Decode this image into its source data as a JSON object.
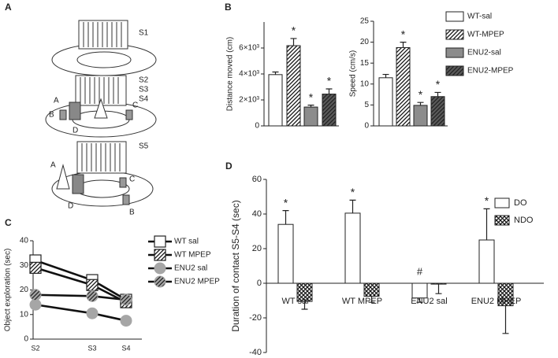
{
  "diagram": {
    "panel": "A",
    "labels": [
      "S1",
      "S2",
      "S3",
      "S4",
      "A",
      "B",
      "C",
      "D",
      "S5",
      "A",
      "C",
      "D",
      "B"
    ]
  },
  "chart_data": [
    {
      "type": "bar",
      "panel": "B",
      "ylabel": "Distance moved (cm)",
      "ylim": [
        0,
        8000
      ],
      "yticks": [
        0,
        {
          "value": 2000,
          "label": "2×10³"
        },
        {
          "value": 4000,
          "label": "4×10³"
        },
        {
          "value": 6000,
          "label": "6×10³"
        }
      ],
      "series": [
        {
          "name": "WT-sal",
          "color": "#ffffff",
          "hatch": "none",
          "values": [
            3950
          ],
          "errors": [
            200
          ]
        },
        {
          "name": "WT-MPEP",
          "color": "#ffffff",
          "hatch": "diagonal",
          "values": [
            6180
          ],
          "errors": [
            550
          ],
          "annotation": "*"
        },
        {
          "name": "ENU2-sal",
          "color": "#8c8c8c",
          "hatch": "none",
          "values": [
            1450
          ],
          "errors": [
            150
          ],
          "annotation": "*"
        },
        {
          "name": "ENU2-MPEP",
          "color": "#5a5a5a",
          "hatch": "diagonal",
          "values": [
            2450
          ],
          "errors": [
            400
          ],
          "annotation": "*"
        }
      ]
    },
    {
      "type": "bar",
      "ylabel": "Speed (cm/s)",
      "ylim": [
        0,
        25
      ],
      "yticks": [
        0,
        5,
        10,
        15,
        20,
        25
      ],
      "series": [
        {
          "color": "#ffffff",
          "hatch": "none",
          "values": [
            11.5
          ],
          "errors": [
            0.8
          ]
        },
        {
          "color": "#ffffff",
          "hatch": "diagonal",
          "values": [
            18.7
          ],
          "errors": [
            1.3
          ],
          "annotation": "*"
        },
        {
          "color": "#8c8c8c",
          "hatch": "none",
          "values": [
            4.9
          ],
          "errors": [
            0.7
          ],
          "annotation": "*"
        },
        {
          "color": "#5a5a5a",
          "hatch": "diagonal",
          "values": [
            7
          ],
          "errors": [
            1
          ],
          "annotation": "*"
        }
      ]
    },
    {
      "type": "line",
      "panel": "C",
      "ylabel": "Object exploration (sec)",
      "ylim": [
        0,
        40
      ],
      "yticks": [
        0,
        10,
        20,
        30,
        40
      ],
      "categories": [
        "S2",
        "S3",
        "S4"
      ],
      "series": [
        {
          "name": "WT sal",
          "marker": "square",
          "color": "#ffffff",
          "hatch": "none",
          "values": [
            32,
            24,
            16
          ]
        },
        {
          "name": "WT MPEP",
          "marker": "square",
          "color": "#ffffff",
          "hatch": "diagonal",
          "values": [
            29,
            22,
            15
          ]
        },
        {
          "name": "ENU2 sal",
          "marker": "circle",
          "color": "#a6a6a6",
          "hatch": "none",
          "values": [
            14,
            10.5,
            7.5
          ]
        },
        {
          "name": "ENU2 MPEP",
          "marker": "circle",
          "color": "#a6a6a6",
          "hatch": "diagonal",
          "values": [
            18,
            17.5,
            16
          ]
        }
      ]
    },
    {
      "type": "bar",
      "panel": "D",
      "ylabel": "Duration of contact S5-S4 (sec)",
      "ylim": [
        -40,
        60
      ],
      "yticks": [
        -40,
        -20,
        0,
        20,
        40,
        60
      ],
      "categories": [
        "WT sal",
        "WT MPEP",
        "ENU2 sal",
        "ENU2 MPEP"
      ],
      "series": [
        {
          "name": "DO",
          "color": "#ffffff",
          "hatch": "none",
          "values": [
            34,
            40.5,
            -8.5,
            25
          ],
          "errors": [
            8,
            7.5,
            2.5,
            18
          ],
          "annotations": [
            "*",
            "*",
            "#",
            "*"
          ]
        },
        {
          "name": "NDO",
          "color": "#ffffff",
          "hatch": "cross",
          "values": [
            -10.5,
            -7.5,
            -0.5,
            -13
          ],
          "errors": [
            4.5,
            3.5,
            5.5,
            16
          ]
        }
      ]
    }
  ]
}
